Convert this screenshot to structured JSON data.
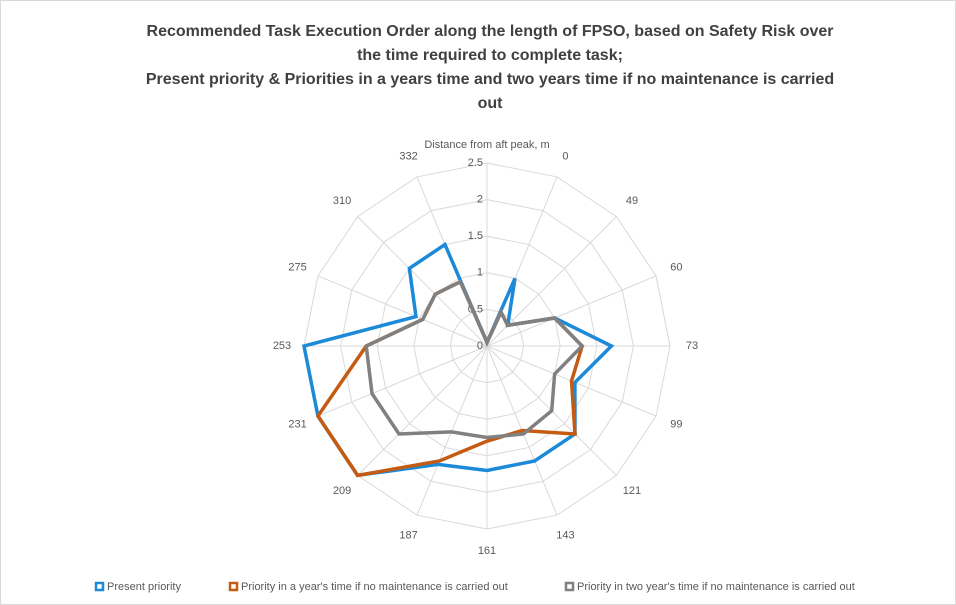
{
  "chart_data": {
    "type": "radar",
    "title": [
      "Recommended Task Execution Order along the length of FPSO, based on Safety Risk over",
      "the time required to complete task;",
      "Present priority & Priorities in a years time and two years time if no maintenance is carried",
      "out"
    ],
    "axis_label": "Distance from aft peak, m",
    "categories": [
      null,
      "0",
      "49",
      "60",
      "73",
      "99",
      "121",
      "143",
      "161",
      "187",
      "209",
      "231",
      "253",
      "275",
      "310",
      "332"
    ],
    "ylim": [
      0,
      2.5
    ],
    "yticks": [
      0,
      0.5,
      1,
      1.5,
      2,
      2.5
    ],
    "grid": true,
    "legend": "bottom",
    "series": [
      {
        "name": "Present priority",
        "color": "#1c8ad8",
        "values": [
          0.05,
          1.0,
          0.4,
          1.0,
          1.7,
          1.3,
          1.7,
          1.7,
          1.7,
          1.75,
          2.5,
          2.5,
          2.5,
          1.05,
          1.5,
          1.5
        ]
      },
      {
        "name": "Priority in a year's time if no maintenance is carried out",
        "color": "#c55a11",
        "values": [
          0.05,
          0.5,
          0.4,
          1.0,
          1.3,
          1.25,
          1.7,
          1.25,
          1.3,
          1.7,
          2.5,
          2.5,
          1.65,
          0.95,
          1.0,
          0.95
        ]
      },
      {
        "name": "Priority in two year's time if no maintenance is carried out",
        "color": "#808080",
        "values": [
          0.05,
          0.5,
          0.4,
          1.0,
          1.3,
          1.0,
          1.25,
          1.3,
          1.25,
          1.27,
          1.7,
          1.7,
          1.65,
          0.95,
          1.0,
          0.95
        ]
      }
    ]
  }
}
